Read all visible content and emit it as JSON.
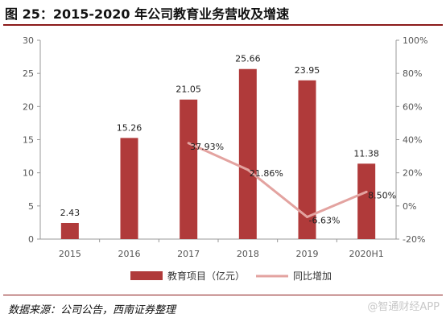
{
  "title": "图 25：2015-2020 年公司教育业务营收及增速",
  "source": "数据来源：公司公告，西南证券整理",
  "watermark": "@智通财经APP",
  "colors": {
    "bar": "#b03a3a",
    "line": "#e3a3a0",
    "rule": "#8b1a1a"
  },
  "chart_data": {
    "type": "bar",
    "categories": [
      "2015",
      "2016",
      "2017",
      "2018",
      "2019",
      "2020H1"
    ],
    "series": [
      {
        "name": "教育项目（亿元）",
        "type": "bar",
        "axis": "left",
        "values": [
          2.43,
          15.26,
          21.05,
          25.66,
          23.95,
          11.38
        ],
        "labels": [
          "2.43",
          "15.26",
          "21.05",
          "25.66",
          "23.95",
          "11.38"
        ]
      },
      {
        "name": "同比增加",
        "type": "line",
        "axis": "right",
        "values": [
          null,
          null,
          37.93,
          21.86,
          -6.63,
          8.5
        ],
        "labels": [
          "",
          "",
          "37.93%",
          "21.86%",
          "-6.63%",
          "8.50%"
        ]
      }
    ],
    "left_axis": {
      "min": 0,
      "max": 30,
      "ticks": [
        "0",
        "5",
        "10",
        "15",
        "20",
        "25",
        "30"
      ]
    },
    "right_axis": {
      "min": -20,
      "max": 100,
      "ticks": [
        "-20%",
        "0%",
        "20%",
        "40%",
        "60%",
        "80%",
        "100%"
      ]
    },
    "legend": "bottom-center",
    "grid": false
  }
}
